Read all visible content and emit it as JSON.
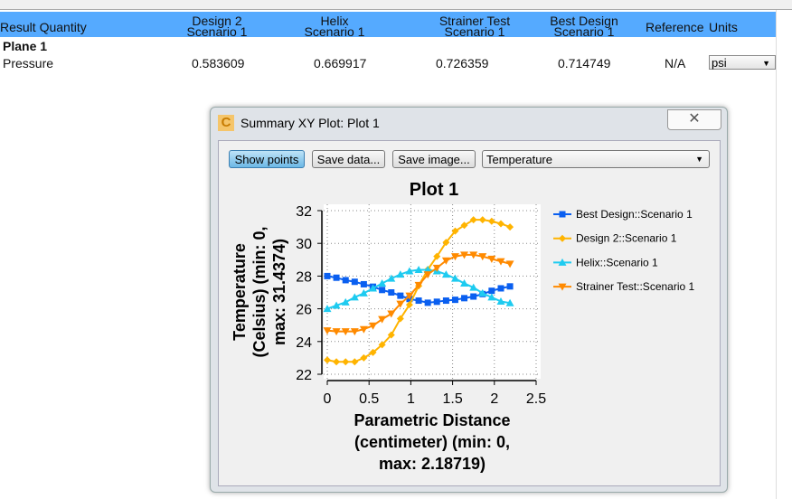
{
  "table": {
    "headers": [
      "Result Quantity",
      [
        "Design 2",
        "Scenario 1"
      ],
      [
        "Helix",
        "Scenario 1"
      ],
      [
        "Strainer Test",
        "Scenario 1"
      ],
      [
        "Best Design",
        "Scenario 1"
      ],
      "Reference",
      "Units"
    ],
    "group": "Plane 1",
    "row": {
      "label": "Pressure",
      "values": [
        "0.583609",
        "0.669917",
        "0.726359",
        "0.714749"
      ],
      "reference": "N/A",
      "units": "psi"
    }
  },
  "dialog": {
    "title": "Summary XY Plot: Plot 1",
    "app_icon": "C",
    "close_icon": "close-icon",
    "buttons": {
      "show_points": "Show points",
      "save_data": "Save data...",
      "save_image": "Save image..."
    },
    "quantity": "Temperature"
  },
  "chart_data": {
    "type": "line",
    "title": "Plot 1",
    "xlabel": [
      "Parametric Distance",
      "(centimeter) (min: 0,",
      "max: 2.18719)"
    ],
    "ylabel": [
      "Temperature",
      "(Celsius) (min: 0,",
      "max: 31.4374)"
    ],
    "xlim": [
      0,
      2.5
    ],
    "ylim": [
      22,
      32
    ],
    "xticks": [
      "0",
      "0.5",
      "1",
      "1.5",
      "2",
      "2.5"
    ],
    "yticks": [
      "22",
      "24",
      "26",
      "28",
      "30",
      "32"
    ],
    "grid": true,
    "legend": "right",
    "x": [
      0,
      0.109,
      0.219,
      0.328,
      0.437,
      0.547,
      0.656,
      0.766,
      0.875,
      0.984,
      1.094,
      1.203,
      1.312,
      1.422,
      1.531,
      1.64,
      1.75,
      1.859,
      1.968,
      2.078,
      2.187
    ],
    "series": [
      {
        "name": "Best Design::Scenario 1",
        "color": "#0a5ff0",
        "marker": "square",
        "values": [
          28.0,
          27.9,
          27.75,
          27.65,
          27.5,
          27.35,
          27.15,
          27.0,
          26.8,
          26.6,
          26.5,
          26.37,
          26.43,
          26.5,
          26.55,
          26.65,
          26.75,
          26.9,
          27.1,
          27.25,
          27.37
        ]
      },
      {
        "name": "Design 2::Scenario 1",
        "color": "#ffb400",
        "marker": "diamond",
        "values": [
          22.87,
          22.76,
          22.76,
          22.76,
          23.0,
          23.33,
          23.8,
          24.4,
          25.4,
          26.25,
          27.4,
          28.4,
          29.2,
          30.06,
          30.75,
          31.1,
          31.44,
          31.44,
          31.35,
          31.2,
          31.0
        ]
      },
      {
        "name": "Helix::Scenario 1",
        "color": "#1ecbf0",
        "marker": "triangle-up",
        "values": [
          26.0,
          26.2,
          26.4,
          26.7,
          26.95,
          27.25,
          27.55,
          27.85,
          28.1,
          28.3,
          28.38,
          28.38,
          28.3,
          28.1,
          27.85,
          27.55,
          27.3,
          26.95,
          26.7,
          26.45,
          26.35
        ]
      },
      {
        "name": "Strainer Test::Scenario 1",
        "color": "#ff8a00",
        "marker": "triangle-down",
        "values": [
          24.67,
          24.62,
          24.62,
          24.62,
          24.75,
          24.97,
          25.36,
          25.7,
          26.3,
          26.8,
          27.45,
          28.1,
          28.5,
          28.95,
          29.2,
          29.3,
          29.3,
          29.2,
          29.05,
          28.9,
          28.75
        ]
      }
    ]
  }
}
